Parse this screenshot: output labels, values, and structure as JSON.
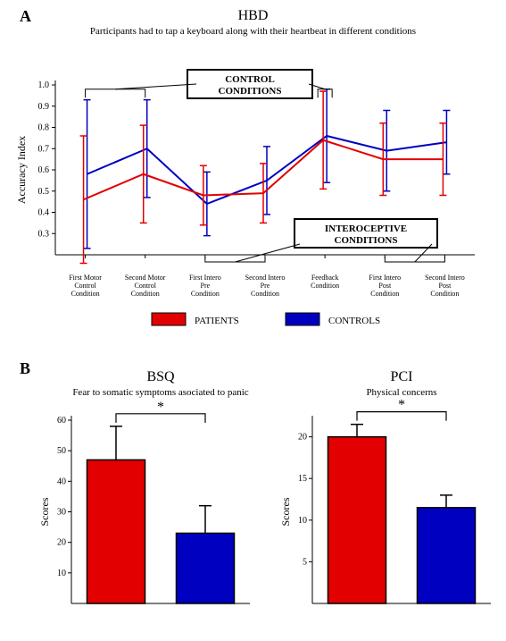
{
  "panelA": {
    "letter": "A",
    "title": "HBD",
    "subtitle": "Participants had to tap a keyboard along with their heartbeat in different conditions",
    "ylabel": "Accuracy Index",
    "ylim": [
      0.2,
      1.0
    ],
    "yticks": [
      0.3,
      0.4,
      0.5,
      0.6,
      0.7,
      0.8,
      0.9,
      1.0
    ],
    "categories": [
      [
        "First Motor",
        "Control",
        "Condition"
      ],
      [
        "Second Motor",
        "Control",
        "Condition"
      ],
      [
        "First Intero",
        "Pre",
        "Condition"
      ],
      [
        "Second Intero",
        "Pre",
        "Condition"
      ],
      [
        "Feedback",
        "Condition"
      ],
      [
        "First Intero",
        "Post",
        "Condition"
      ],
      [
        "Second Intero",
        "Post",
        "Condition"
      ]
    ],
    "controlBox": "CONTROL\nCONDITIONS",
    "interoBox": "INTEROCEPTIVE\nCONDITIONS",
    "series": {
      "patients": {
        "color": "#e20000",
        "y": [
          0.46,
          0.58,
          0.48,
          0.49,
          0.74,
          0.65,
          0.65
        ],
        "err": [
          0.3,
          0.23,
          0.14,
          0.14,
          0.23,
          0.17,
          0.17
        ]
      },
      "controls": {
        "color": "#0000c0",
        "y": [
          0.58,
          0.7,
          0.44,
          0.55,
          0.76,
          0.69,
          0.73
        ],
        "err": [
          0.35,
          0.23,
          0.15,
          0.16,
          0.22,
          0.19,
          0.15
        ]
      }
    },
    "legend": {
      "patients": "PATIENTS",
      "controls": "CONTROLS"
    },
    "line_width": 2,
    "err_width": 1.5
  },
  "panelB": {
    "letter": "B",
    "charts": [
      {
        "title": "BSQ",
        "subtitle": "Fear to somatic symptoms asociated to panic",
        "ylabel": "Scores",
        "ylim": [
          0,
          60
        ],
        "yticks": [
          10,
          20,
          30,
          40,
          50,
          60
        ],
        "bars": [
          {
            "color": "#e20000",
            "value": 47,
            "err": 11
          },
          {
            "color": "#0000c0",
            "value": 23,
            "err": 9
          }
        ],
        "sig": "*"
      },
      {
        "title": "PCI",
        "subtitle": "Physical concerns",
        "ylabel": "Scores",
        "ylim": [
          0,
          22
        ],
        "yticks": [
          5,
          10,
          15,
          20
        ],
        "bars": [
          {
            "color": "#e20000",
            "value": 20,
            "err": 1.5
          },
          {
            "color": "#0000c0",
            "value": 11.5,
            "err": 1.5
          }
        ],
        "sig": "*"
      }
    ]
  },
  "colors": {
    "axis": "#000000",
    "text": "#000000",
    "boxFill": "#ffffff",
    "boxStroke": "#000000"
  }
}
